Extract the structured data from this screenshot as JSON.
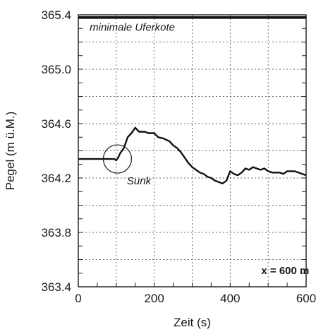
{
  "chart_data": {
    "type": "line",
    "xlabel": "Zeit (s)",
    "ylabel": "Pegel (m ü.M.)",
    "xlim": [
      0,
      600
    ],
    "ylim": [
      363.4,
      365.4
    ],
    "x_ticks": [
      0,
      200,
      400,
      600
    ],
    "y_ticks": [
      363.4,
      363.8,
      364.2,
      364.6,
      365.0,
      365.4
    ],
    "x_tick_labels": [
      "0",
      "200",
      "400",
      "600"
    ],
    "y_tick_labels": [
      "363.4",
      "363.8",
      "364.2",
      "364.6",
      "365.0",
      "365.4"
    ],
    "grid": true,
    "series": [
      {
        "x": [
          0,
          20,
          40,
          60,
          80,
          95,
          100,
          105,
          110,
          120,
          130,
          140,
          150,
          160,
          175,
          185,
          200,
          210,
          225,
          240,
          250,
          260,
          270,
          280,
          290,
          300,
          310,
          320,
          330,
          340,
          350,
          360,
          370,
          380,
          390,
          400,
          410,
          420,
          430,
          440,
          450,
          460,
          470,
          480,
          490,
          500,
          510,
          520,
          530,
          540,
          550,
          560,
          570,
          580,
          590,
          600
        ],
        "y": [
          364.34,
          364.34,
          364.34,
          364.34,
          364.34,
          364.34,
          364.33,
          364.35,
          364.38,
          364.42,
          364.5,
          364.53,
          364.57,
          364.54,
          364.54,
          364.53,
          364.53,
          364.5,
          364.49,
          364.47,
          364.44,
          364.42,
          364.39,
          364.35,
          364.31,
          364.28,
          364.26,
          364.24,
          364.23,
          364.21,
          364.2,
          364.18,
          364.17,
          364.16,
          364.18,
          364.25,
          364.23,
          364.22,
          364.24,
          364.27,
          364.26,
          364.28,
          364.27,
          364.26,
          364.27,
          364.25,
          364.24,
          364.24,
          364.24,
          364.23,
          364.25,
          364.25,
          364.25,
          364.24,
          364.23,
          364.22
        ]
      },
      {
        "x": [
          0,
          600
        ],
        "y": [
          365.38,
          365.38
        ]
      }
    ],
    "annotations": [
      {
        "text": "minimale Uferkote",
        "x": 30,
        "y": 365.31
      },
      {
        "text": "Sunk",
        "x": 128,
        "y": 364.18
      },
      {
        "text": "x = 600 m",
        "x": 545,
        "y": 363.52
      }
    ],
    "circle": {
      "x": 103,
      "y": 364.34
    }
  }
}
